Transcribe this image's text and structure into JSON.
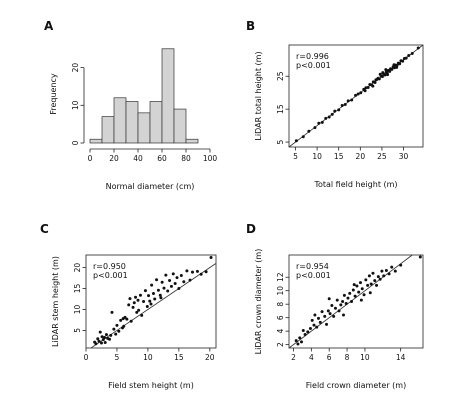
{
  "chart_data": [
    {
      "panel": "A",
      "type": "bar",
      "xlabel": "Normal diameter (cm)",
      "ylabel": "Frequency",
      "bin_edges": [
        0,
        10,
        20,
        30,
        40,
        50,
        60,
        70,
        80,
        90
      ],
      "values": [
        1,
        7,
        12,
        11,
        8,
        11,
        25,
        9,
        1
      ],
      "xlim": [
        0,
        100
      ],
      "ylim": [
        0,
        26
      ],
      "xticks": [
        0,
        20,
        40,
        60,
        80,
        100
      ],
      "yticks": [
        0,
        10,
        20
      ],
      "bar_color": "#d3d3d3"
    },
    {
      "panel": "B",
      "type": "scatter",
      "xlabel": "Total field height (m)",
      "ylabel": "LiDAR total height (m)",
      "annotation_r": "r=0.996",
      "annotation_p": "p<0.001",
      "xlim": [
        3.5,
        34.5
      ],
      "ylim": [
        3.5,
        34.5
      ],
      "xticks": [
        5,
        10,
        15,
        20,
        25,
        30
      ],
      "yticks": [
        5,
        15,
        25
      ],
      "reference_line": [
        [
          3.5,
          3.5
        ],
        [
          34.5,
          34.5
        ]
      ],
      "points": [
        [
          5.2,
          5.4
        ],
        [
          6.8,
          6.6
        ],
        [
          8.1,
          8.3
        ],
        [
          9.5,
          9.4
        ],
        [
          10.4,
          10.7
        ],
        [
          11.2,
          11.0
        ],
        [
          12.0,
          12.2
        ],
        [
          12.8,
          12.6
        ],
        [
          13.5,
          13.4
        ],
        [
          14.1,
          14.4
        ],
        [
          15.0,
          14.8
        ],
        [
          15.8,
          16.1
        ],
        [
          16.5,
          16.4
        ],
        [
          17.2,
          17.5
        ],
        [
          18.0,
          17.8
        ],
        [
          18.9,
          19.2
        ],
        [
          19.5,
          19.6
        ],
        [
          20.1,
          20.0
        ],
        [
          20.8,
          21.0
        ],
        [
          21.3,
          21.5
        ],
        [
          21.8,
          21.6
        ],
        [
          22.2,
          22.5
        ],
        [
          22.6,
          22.4
        ],
        [
          23.0,
          23.3
        ],
        [
          23.4,
          23.1
        ],
        [
          23.8,
          24.0
        ],
        [
          24.1,
          24.4
        ],
        [
          24.4,
          24.2
        ],
        [
          24.8,
          25.1
        ],
        [
          25.1,
          24.9
        ],
        [
          25.4,
          25.7
        ],
        [
          25.7,
          25.4
        ],
        [
          26.0,
          26.3
        ],
        [
          26.2,
          26.0
        ],
        [
          26.5,
          26.8
        ],
        [
          26.8,
          26.5
        ],
        [
          27.0,
          27.3
        ],
        [
          27.3,
          27.1
        ],
        [
          27.6,
          27.9
        ],
        [
          27.9,
          27.6
        ],
        [
          28.2,
          28.4
        ],
        [
          28.5,
          28.3
        ],
        [
          28.8,
          29.0
        ],
        [
          29.1,
          28.8
        ],
        [
          29.4,
          29.7
        ],
        [
          29.8,
          29.6
        ],
        [
          30.2,
          30.4
        ],
        [
          30.6,
          30.5
        ],
        [
          31.2,
          31.3
        ],
        [
          32.0,
          31.9
        ],
        [
          33.4,
          33.6
        ],
        [
          24.6,
          25.6
        ],
        [
          26.3,
          25.5
        ],
        [
          22.9,
          22.0
        ],
        [
          25.9,
          27.0
        ],
        [
          23.6,
          23.9
        ],
        [
          27.8,
          28.5
        ],
        [
          25.2,
          26.1
        ],
        [
          28.4,
          27.7
        ],
        [
          21.1,
          20.6
        ]
      ]
    },
    {
      "panel": "C",
      "type": "scatter",
      "xlabel": "Field stem height (m)",
      "ylabel": "LiDAR stem height (m)",
      "annotation_r": "r=0.950",
      "annotation_p": "p<0.001",
      "xlim": [
        0,
        21
      ],
      "ylim": [
        0.8,
        23
      ],
      "xticks": [
        0,
        5,
        10,
        15,
        20
      ],
      "yticks": [
        5,
        10,
        15,
        20
      ],
      "reference_line": [
        [
          0.8,
          0.8
        ],
        [
          21,
          21
        ]
      ],
      "points": [
        [
          1.4,
          2.2
        ],
        [
          1.6,
          1.8
        ],
        [
          1.9,
          3.0
        ],
        [
          2.1,
          2.4
        ],
        [
          2.3,
          4.6
        ],
        [
          2.5,
          2.0
        ],
        [
          2.6,
          3.5
        ],
        [
          2.8,
          2.8
        ],
        [
          3.0,
          3.3
        ],
        [
          3.1,
          2.1
        ],
        [
          3.3,
          4.0
        ],
        [
          3.5,
          3.1
        ],
        [
          3.8,
          2.9
        ],
        [
          4.0,
          3.8
        ],
        [
          4.2,
          9.3
        ],
        [
          4.5,
          5.3
        ],
        [
          4.8,
          4.1
        ],
        [
          5.0,
          6.2
        ],
        [
          5.3,
          4.8
        ],
        [
          5.6,
          7.4
        ],
        [
          5.9,
          5.6
        ],
        [
          6.0,
          7.8
        ],
        [
          6.3,
          8.1
        ],
        [
          6.6,
          7.7
        ],
        [
          6.9,
          11.1
        ],
        [
          7.1,
          12.6
        ],
        [
          7.3,
          7.2
        ],
        [
          7.6,
          10.5
        ],
        [
          7.8,
          11.6
        ],
        [
          8.0,
          12.9
        ],
        [
          8.2,
          9.3
        ],
        [
          8.5,
          9.8
        ],
        [
          8.8,
          13.4
        ],
        [
          9.0,
          8.6
        ],
        [
          9.3,
          11.9
        ],
        [
          9.6,
          14.5
        ],
        [
          9.9,
          10.7
        ],
        [
          10.1,
          13.3
        ],
        [
          10.3,
          12.0
        ],
        [
          10.6,
          15.8
        ],
        [
          10.9,
          13.8
        ],
        [
          11.1,
          12.5
        ],
        [
          11.4,
          17.1
        ],
        [
          11.7,
          14.6
        ],
        [
          12.0,
          13.4
        ],
        [
          12.3,
          16.5
        ],
        [
          12.6,
          15.1
        ],
        [
          12.9,
          18.2
        ],
        [
          13.2,
          14.4
        ],
        [
          13.5,
          16.9
        ],
        [
          13.8,
          15.5
        ],
        [
          14.1,
          18.5
        ],
        [
          14.4,
          16.2
        ],
        [
          14.7,
          17.6
        ],
        [
          15.0,
          15.0
        ],
        [
          15.4,
          18.1
        ],
        [
          15.8,
          16.6
        ],
        [
          16.3,
          19.2
        ],
        [
          16.8,
          17.0
        ],
        [
          17.2,
          18.9
        ],
        [
          18.0,
          19.1
        ],
        [
          18.6,
          18.4
        ],
        [
          19.4,
          19.0
        ],
        [
          20.2,
          22.4
        ],
        [
          10.5,
          11.3
        ],
        [
          12.1,
          12.8
        ],
        [
          8.4,
          12.2
        ],
        [
          6.1,
          6.0
        ]
      ]
    },
    {
      "panel": "D",
      "type": "scatter",
      "xlabel": "Field crown diameter (m)",
      "ylabel": "LiDAR crown diameter (m)",
      "annotation_r": "r=0.954",
      "annotation_p": "p<0.001",
      "xlim": [
        1.5,
        16.5
      ],
      "ylim": [
        1.5,
        15.3
      ],
      "xticks": [
        2,
        4,
        6,
        8,
        10,
        14
      ],
      "yticks": [
        2,
        4,
        6,
        8,
        10,
        12
      ],
      "reference_line": [
        [
          1.5,
          1.5
        ],
        [
          15.3,
          15.3
        ]
      ],
      "points": [
        [
          2.3,
          2.6
        ],
        [
          2.5,
          2.1
        ],
        [
          2.7,
          3.0
        ],
        [
          2.9,
          2.4
        ],
        [
          3.1,
          4.1
        ],
        [
          3.3,
          3.5
        ],
        [
          3.6,
          3.9
        ],
        [
          3.9,
          4.4
        ],
        [
          4.1,
          5.6
        ],
        [
          4.4,
          6.4
        ],
        [
          4.6,
          4.6
        ],
        [
          4.8,
          5.9
        ],
        [
          5.0,
          5.3
        ],
        [
          5.2,
          6.9
        ],
        [
          5.5,
          6.2
        ],
        [
          5.7,
          5.0
        ],
        [
          5.9,
          7.0
        ],
        [
          6.1,
          6.6
        ],
        [
          6.3,
          7.8
        ],
        [
          6.5,
          6.2
        ],
        [
          6.7,
          7.4
        ],
        [
          6.9,
          8.6
        ],
        [
          7.1,
          7.0
        ],
        [
          7.3,
          7.9
        ],
        [
          7.5,
          8.4
        ],
        [
          7.7,
          9.3
        ],
        [
          7.9,
          8.1
        ],
        [
          8.1,
          8.9
        ],
        [
          8.3,
          9.6
        ],
        [
          8.5,
          8.4
        ],
        [
          8.7,
          10.1
        ],
        [
          8.9,
          9.2
        ],
        [
          9.1,
          10.7
        ],
        [
          9.3,
          9.8
        ],
        [
          9.5,
          11.2
        ],
        [
          9.7,
          10.3
        ],
        [
          9.9,
          9.4
        ],
        [
          10.1,
          11.6
        ],
        [
          10.3,
          10.8
        ],
        [
          10.5,
          12.2
        ],
        [
          10.7,
          11.0
        ],
        [
          10.9,
          12.6
        ],
        [
          11.1,
          11.5
        ],
        [
          11.3,
          10.8
        ],
        [
          11.5,
          12.1
        ],
        [
          11.7,
          11.7
        ],
        [
          11.9,
          12.9
        ],
        [
          12.1,
          12.2
        ],
        [
          12.4,
          13.0
        ],
        [
          12.7,
          12.5
        ],
        [
          13.0,
          13.5
        ],
        [
          13.4,
          12.9
        ],
        [
          14.0,
          13.8
        ],
        [
          16.2,
          15.0
        ],
        [
          6.0,
          8.8
        ],
        [
          7.6,
          6.4
        ],
        [
          9.6,
          8.6
        ],
        [
          10.6,
          9.7
        ],
        [
          8.8,
          10.9
        ],
        [
          4.3,
          4.9
        ]
      ]
    }
  ]
}
